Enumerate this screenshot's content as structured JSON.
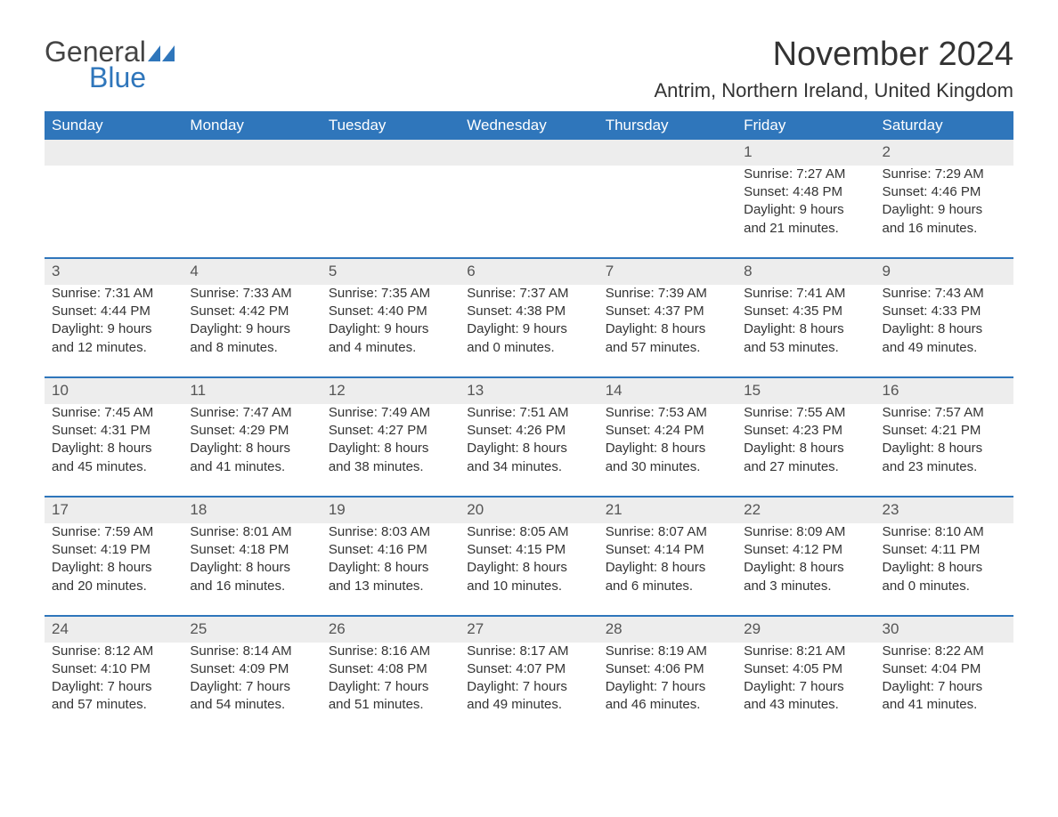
{
  "logo": {
    "word1": "General",
    "word2": "Blue",
    "tri_color": "#2f76bb",
    "text_color1": "#444444",
    "text_color2": "#2f76bb"
  },
  "header": {
    "month_title": "November 2024",
    "location": "Antrim, Northern Ireland, United Kingdom"
  },
  "style": {
    "header_bg": "#2f76bb",
    "header_text": "#ffffff",
    "daynum_bg": "#ededed",
    "row_border": "#2f76bb",
    "body_text": "#333333",
    "font_family": "Arial",
    "title_fontsize": 38,
    "location_fontsize": 22,
    "dayheader_fontsize": 17,
    "cell_fontsize": 15
  },
  "day_headers": [
    "Sunday",
    "Monday",
    "Tuesday",
    "Wednesday",
    "Thursday",
    "Friday",
    "Saturday"
  ],
  "weeks": [
    [
      null,
      null,
      null,
      null,
      null,
      {
        "n": "1",
        "sunrise": "Sunrise: 7:27 AM",
        "sunset": "Sunset: 4:48 PM",
        "dl1": "Daylight: 9 hours",
        "dl2": "and 21 minutes."
      },
      {
        "n": "2",
        "sunrise": "Sunrise: 7:29 AM",
        "sunset": "Sunset: 4:46 PM",
        "dl1": "Daylight: 9 hours",
        "dl2": "and 16 minutes."
      }
    ],
    [
      {
        "n": "3",
        "sunrise": "Sunrise: 7:31 AM",
        "sunset": "Sunset: 4:44 PM",
        "dl1": "Daylight: 9 hours",
        "dl2": "and 12 minutes."
      },
      {
        "n": "4",
        "sunrise": "Sunrise: 7:33 AM",
        "sunset": "Sunset: 4:42 PM",
        "dl1": "Daylight: 9 hours",
        "dl2": "and 8 minutes."
      },
      {
        "n": "5",
        "sunrise": "Sunrise: 7:35 AM",
        "sunset": "Sunset: 4:40 PM",
        "dl1": "Daylight: 9 hours",
        "dl2": "and 4 minutes."
      },
      {
        "n": "6",
        "sunrise": "Sunrise: 7:37 AM",
        "sunset": "Sunset: 4:38 PM",
        "dl1": "Daylight: 9 hours",
        "dl2": "and 0 minutes."
      },
      {
        "n": "7",
        "sunrise": "Sunrise: 7:39 AM",
        "sunset": "Sunset: 4:37 PM",
        "dl1": "Daylight: 8 hours",
        "dl2": "and 57 minutes."
      },
      {
        "n": "8",
        "sunrise": "Sunrise: 7:41 AM",
        "sunset": "Sunset: 4:35 PM",
        "dl1": "Daylight: 8 hours",
        "dl2": "and 53 minutes."
      },
      {
        "n": "9",
        "sunrise": "Sunrise: 7:43 AM",
        "sunset": "Sunset: 4:33 PM",
        "dl1": "Daylight: 8 hours",
        "dl2": "and 49 minutes."
      }
    ],
    [
      {
        "n": "10",
        "sunrise": "Sunrise: 7:45 AM",
        "sunset": "Sunset: 4:31 PM",
        "dl1": "Daylight: 8 hours",
        "dl2": "and 45 minutes."
      },
      {
        "n": "11",
        "sunrise": "Sunrise: 7:47 AM",
        "sunset": "Sunset: 4:29 PM",
        "dl1": "Daylight: 8 hours",
        "dl2": "and 41 minutes."
      },
      {
        "n": "12",
        "sunrise": "Sunrise: 7:49 AM",
        "sunset": "Sunset: 4:27 PM",
        "dl1": "Daylight: 8 hours",
        "dl2": "and 38 minutes."
      },
      {
        "n": "13",
        "sunrise": "Sunrise: 7:51 AM",
        "sunset": "Sunset: 4:26 PM",
        "dl1": "Daylight: 8 hours",
        "dl2": "and 34 minutes."
      },
      {
        "n": "14",
        "sunrise": "Sunrise: 7:53 AM",
        "sunset": "Sunset: 4:24 PM",
        "dl1": "Daylight: 8 hours",
        "dl2": "and 30 minutes."
      },
      {
        "n": "15",
        "sunrise": "Sunrise: 7:55 AM",
        "sunset": "Sunset: 4:23 PM",
        "dl1": "Daylight: 8 hours",
        "dl2": "and 27 minutes."
      },
      {
        "n": "16",
        "sunrise": "Sunrise: 7:57 AM",
        "sunset": "Sunset: 4:21 PM",
        "dl1": "Daylight: 8 hours",
        "dl2": "and 23 minutes."
      }
    ],
    [
      {
        "n": "17",
        "sunrise": "Sunrise: 7:59 AM",
        "sunset": "Sunset: 4:19 PM",
        "dl1": "Daylight: 8 hours",
        "dl2": "and 20 minutes."
      },
      {
        "n": "18",
        "sunrise": "Sunrise: 8:01 AM",
        "sunset": "Sunset: 4:18 PM",
        "dl1": "Daylight: 8 hours",
        "dl2": "and 16 minutes."
      },
      {
        "n": "19",
        "sunrise": "Sunrise: 8:03 AM",
        "sunset": "Sunset: 4:16 PM",
        "dl1": "Daylight: 8 hours",
        "dl2": "and 13 minutes."
      },
      {
        "n": "20",
        "sunrise": "Sunrise: 8:05 AM",
        "sunset": "Sunset: 4:15 PM",
        "dl1": "Daylight: 8 hours",
        "dl2": "and 10 minutes."
      },
      {
        "n": "21",
        "sunrise": "Sunrise: 8:07 AM",
        "sunset": "Sunset: 4:14 PM",
        "dl1": "Daylight: 8 hours",
        "dl2": "and 6 minutes."
      },
      {
        "n": "22",
        "sunrise": "Sunrise: 8:09 AM",
        "sunset": "Sunset: 4:12 PM",
        "dl1": "Daylight: 8 hours",
        "dl2": "and 3 minutes."
      },
      {
        "n": "23",
        "sunrise": "Sunrise: 8:10 AM",
        "sunset": "Sunset: 4:11 PM",
        "dl1": "Daylight: 8 hours",
        "dl2": "and 0 minutes."
      }
    ],
    [
      {
        "n": "24",
        "sunrise": "Sunrise: 8:12 AM",
        "sunset": "Sunset: 4:10 PM",
        "dl1": "Daylight: 7 hours",
        "dl2": "and 57 minutes."
      },
      {
        "n": "25",
        "sunrise": "Sunrise: 8:14 AM",
        "sunset": "Sunset: 4:09 PM",
        "dl1": "Daylight: 7 hours",
        "dl2": "and 54 minutes."
      },
      {
        "n": "26",
        "sunrise": "Sunrise: 8:16 AM",
        "sunset": "Sunset: 4:08 PM",
        "dl1": "Daylight: 7 hours",
        "dl2": "and 51 minutes."
      },
      {
        "n": "27",
        "sunrise": "Sunrise: 8:17 AM",
        "sunset": "Sunset: 4:07 PM",
        "dl1": "Daylight: 7 hours",
        "dl2": "and 49 minutes."
      },
      {
        "n": "28",
        "sunrise": "Sunrise: 8:19 AM",
        "sunset": "Sunset: 4:06 PM",
        "dl1": "Daylight: 7 hours",
        "dl2": "and 46 minutes."
      },
      {
        "n": "29",
        "sunrise": "Sunrise: 8:21 AM",
        "sunset": "Sunset: 4:05 PM",
        "dl1": "Daylight: 7 hours",
        "dl2": "and 43 minutes."
      },
      {
        "n": "30",
        "sunrise": "Sunrise: 8:22 AM",
        "sunset": "Sunset: 4:04 PM",
        "dl1": "Daylight: 7 hours",
        "dl2": "and 41 minutes."
      }
    ]
  ]
}
